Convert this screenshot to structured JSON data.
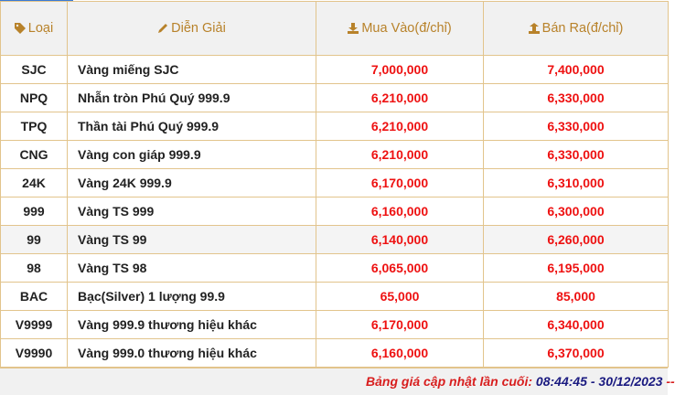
{
  "header": {
    "type": "Loại",
    "desc": "Diễn Giải",
    "buy": "Mua Vào(đ/chỉ)",
    "sell": "Bán Ra(đ/chỉ)"
  },
  "icons": {
    "type": "tag-icon",
    "desc": "pencil-icon",
    "buy": "download-icon",
    "sell": "upload-icon"
  },
  "colors": {
    "header_text": "#b8822a",
    "price": "#ee1111",
    "border": "#e2c48c"
  },
  "rows": [
    {
      "code": "SJC",
      "desc": "Vàng miếng SJC",
      "buy": "7,000,000",
      "sell": "7,400,000"
    },
    {
      "code": "NPQ",
      "desc": "Nhẫn tròn Phú Quý 999.9",
      "buy": "6,210,000",
      "sell": "6,330,000"
    },
    {
      "code": "TPQ",
      "desc": "Thần tài Phú Quý 999.9",
      "buy": "6,210,000",
      "sell": "6,330,000"
    },
    {
      "code": "CNG",
      "desc": "Vàng con giáp 999.9",
      "buy": "6,210,000",
      "sell": "6,330,000"
    },
    {
      "code": "24K",
      "desc": "Vàng 24K 999.9",
      "buy": "6,170,000",
      "sell": "6,310,000"
    },
    {
      "code": "999",
      "desc": "Vàng TS 999",
      "buy": "6,160,000",
      "sell": "6,300,000"
    },
    {
      "code": "99",
      "desc": "Vàng TS 99",
      "buy": "6,140,000",
      "sell": "6,260,000"
    },
    {
      "code": "98",
      "desc": "Vàng TS 98",
      "buy": "6,065,000",
      "sell": "6,195,000"
    },
    {
      "code": "BAC",
      "desc": "Bạc(Silver) 1 lượng 99.9",
      "buy": "65,000",
      "sell": "85,000"
    },
    {
      "code": "V9999",
      "desc": "Vàng 999.9 thương hiệu khác",
      "buy": "6,170,000",
      "sell": "6,340,000"
    },
    {
      "code": "V9990",
      "desc": "Vàng 999.0 thương hiệu khác",
      "buy": "6,160,000",
      "sell": "6,370,000"
    }
  ],
  "footer": {
    "label": "Bảng giá cập nhật lần cuối:",
    "time": "08:44:45 - 30/12/2023",
    "tail": "--"
  }
}
